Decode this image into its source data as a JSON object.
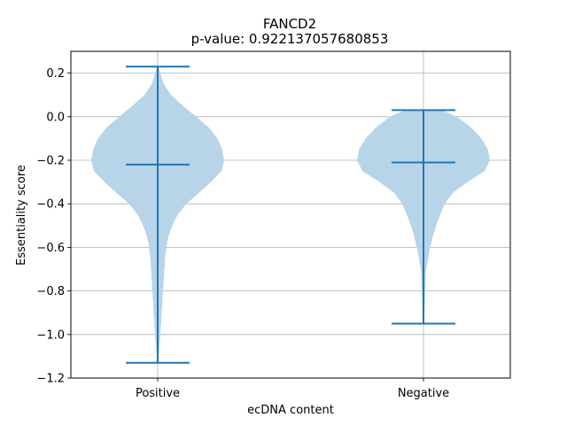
{
  "chart_data": {
    "type": "violin",
    "title": "FANCD2",
    "subtitle": "p-value: 0.922137057680853",
    "xlabel": "ecDNA content",
    "ylabel": "Essentiality score",
    "categories": [
      "Positive",
      "Negative"
    ],
    "ylim": [
      -1.2,
      0.3
    ],
    "yticks": [
      0.2,
      0.0,
      -0.2,
      -0.4,
      -0.6,
      -0.8,
      -1.0,
      -1.2
    ],
    "ytick_labels": [
      "0.2",
      "0.0",
      "−0.2",
      "−0.4",
      "−0.6",
      "−0.8",
      "−1.0",
      "−1.2"
    ],
    "grid": true,
    "fill_color": "#b8d4e8",
    "line_color": "#1f77b4",
    "violins": [
      {
        "category": "Positive",
        "max": 0.23,
        "median": -0.22,
        "min": -1.13,
        "density": [
          [
            0.23,
            0.01
          ],
          [
            0.2,
            0.04
          ],
          [
            0.15,
            0.09
          ],
          [
            0.1,
            0.2
          ],
          [
            0.05,
            0.38
          ],
          [
            0.0,
            0.58
          ],
          [
            -0.05,
            0.77
          ],
          [
            -0.1,
            0.9
          ],
          [
            -0.15,
            0.97
          ],
          [
            -0.2,
            1.0
          ],
          [
            -0.25,
            0.96
          ],
          [
            -0.3,
            0.8
          ],
          [
            -0.35,
            0.62
          ],
          [
            -0.4,
            0.43
          ],
          [
            -0.45,
            0.3
          ],
          [
            -0.5,
            0.22
          ],
          [
            -0.55,
            0.16
          ],
          [
            -0.6,
            0.13
          ],
          [
            -0.65,
            0.11
          ],
          [
            -0.7,
            0.1
          ],
          [
            -0.8,
            0.08
          ],
          [
            -0.9,
            0.06
          ],
          [
            -1.0,
            0.04
          ],
          [
            -1.08,
            0.02
          ],
          [
            -1.13,
            0.005
          ]
        ]
      },
      {
        "category": "Negative",
        "max": 0.03,
        "median": -0.21,
        "min": -0.95,
        "density": [
          [
            0.03,
            0.28
          ],
          [
            0.0,
            0.5
          ],
          [
            -0.05,
            0.72
          ],
          [
            -0.1,
            0.87
          ],
          [
            -0.15,
            0.97
          ],
          [
            -0.2,
            1.0
          ],
          [
            -0.25,
            0.92
          ],
          [
            -0.3,
            0.66
          ],
          [
            -0.35,
            0.44
          ],
          [
            -0.4,
            0.32
          ],
          [
            -0.45,
            0.25
          ],
          [
            -0.5,
            0.19
          ],
          [
            -0.55,
            0.14
          ],
          [
            -0.6,
            0.1
          ],
          [
            -0.65,
            0.07
          ],
          [
            -0.7,
            0.04
          ],
          [
            -0.8,
            0.025
          ],
          [
            -0.9,
            0.015
          ],
          [
            -0.95,
            0.005
          ]
        ]
      }
    ]
  }
}
